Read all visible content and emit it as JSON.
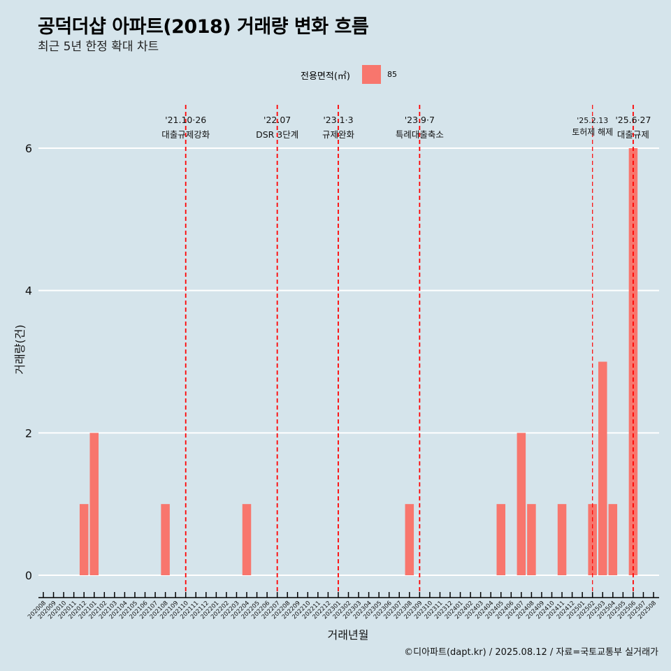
{
  "header": {
    "title": "공덕더샵 아파트(2018) 거래량 변화 흐름",
    "subtitle": "최근 5년 한정 확대 차트"
  },
  "legend": {
    "title": "전용면적(㎡)",
    "entries": [
      {
        "label": "85",
        "color": "#f8766d"
      }
    ]
  },
  "caption": "©디아파트(dapt.kr) / 2025.08.12 / 자료=국토교통부 실거래가",
  "colors": {
    "background": "#d5e4eb",
    "bar": "#f8766d",
    "gridline": "#ffffff",
    "vline": "#ff0000"
  },
  "chart_data": {
    "type": "bar",
    "title": "공덕더샵 아파트(2018) 거래량 변화 흐름",
    "subtitle": "최근 5년 한정 확대 차트",
    "xlabel": "거래년월",
    "ylabel": "거래량(건)",
    "ylim": [
      0,
      6
    ],
    "y_ticks": [
      0,
      2,
      4,
      6
    ],
    "grid": true,
    "legend_position": "top",
    "categories": [
      "202008",
      "202009",
      "202010",
      "202011",
      "202012",
      "202101",
      "202102",
      "202103",
      "202104",
      "202105",
      "202106",
      "202107",
      "202108",
      "202109",
      "202110",
      "202111",
      "202112",
      "202201",
      "202202",
      "202203",
      "202204",
      "202205",
      "202206",
      "202207",
      "202208",
      "202209",
      "202210",
      "202211",
      "202212",
      "202301",
      "202302",
      "202303",
      "202304",
      "202305",
      "202306",
      "202307",
      "202308",
      "202309",
      "202310",
      "202311",
      "202312",
      "202401",
      "202402",
      "202403",
      "202404",
      "202405",
      "202406",
      "202407",
      "202408",
      "202409",
      "202410",
      "202411",
      "202412",
      "202501",
      "202502",
      "202503",
      "202504",
      "202505",
      "202506",
      "202507",
      "202508"
    ],
    "series": [
      {
        "name": "85",
        "values": [
          0,
          0,
          0,
          0,
          1,
          2,
          0,
          0,
          0,
          0,
          0,
          0,
          1,
          0,
          0,
          0,
          0,
          0,
          0,
          0,
          1,
          0,
          0,
          0,
          0,
          0,
          0,
          0,
          0,
          0,
          0,
          0,
          0,
          0,
          0,
          0,
          1,
          0,
          0,
          0,
          0,
          0,
          0,
          0,
          0,
          1,
          0,
          2,
          1,
          0,
          0,
          1,
          0,
          0,
          1,
          3,
          1,
          0,
          6,
          0,
          0
        ]
      }
    ],
    "annotations": [
      {
        "date": "'21.10·26",
        "label": "대출규제강화",
        "x": "202110"
      },
      {
        "date": "'22.07",
        "label": "DSR 3단계",
        "x": "202207"
      },
      {
        "date": "'23.1·3",
        "label": "규제완화",
        "x": "202301"
      },
      {
        "date": "'23.9·7",
        "label": "특례대출축소",
        "x": "202309"
      },
      {
        "date": "'25.2.13",
        "label": "토허제 해제",
        "x": "202502"
      },
      {
        "date": "'25.6·27",
        "label": "대출규제",
        "x": "202506"
      }
    ]
  }
}
